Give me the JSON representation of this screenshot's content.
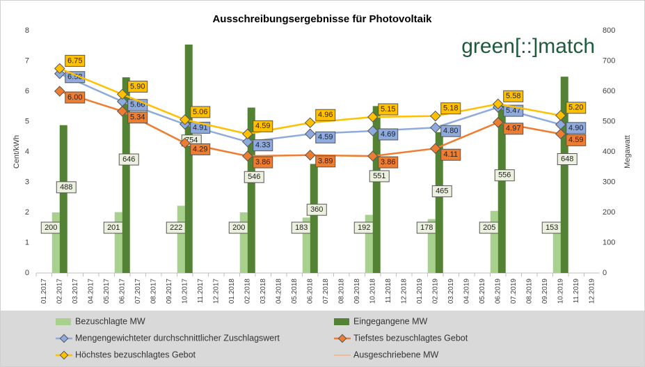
{
  "chart_data": {
    "type": "combo",
    "title": "Ausschreibungsergebnisse für Photovoltaik",
    "watermark": "green[::]match",
    "y_label": "Cent/kWh",
    "y2_label": "Megawatt",
    "categories": [
      "01.2017",
      "02.2017",
      "03.2017",
      "04.2017",
      "05.2017",
      "06.2017",
      "07.2017",
      "08.2017",
      "09.2017",
      "10.2017",
      "11.2017",
      "12.2017",
      "01.2018",
      "02.2018",
      "03.2018",
      "04.2018",
      "05.2018",
      "06.2018",
      "07.2018",
      "08.2018",
      "09.2018",
      "10.2018",
      "11.2018",
      "12.2018",
      "01.2019",
      "02.2019",
      "03.2019",
      "04.2019",
      "05.2019",
      "06.2019",
      "07.2019",
      "08.2019",
      "09.2019",
      "10.2019",
      "11.2019",
      "12.2019"
    ],
    "ylim": [
      0,
      8
    ],
    "yticks": [
      0,
      1,
      2,
      3,
      4,
      5,
      6,
      7,
      8
    ],
    "y2lim": [
      0,
      800
    ],
    "y2ticks": [
      0,
      100,
      200,
      300,
      400,
      500,
      600,
      700,
      800
    ],
    "span_gaps": true,
    "series": [
      {
        "name": "Bezuschlagte MW",
        "type": "bar",
        "axis": "y2",
        "color": "#a9d18e",
        "values": [
          null,
          200,
          null,
          null,
          null,
          201,
          null,
          null,
          null,
          222,
          null,
          null,
          null,
          200,
          null,
          null,
          null,
          183,
          null,
          null,
          null,
          192,
          null,
          null,
          null,
          178,
          null,
          null,
          null,
          205,
          null,
          null,
          null,
          153,
          null,
          null
        ]
      },
      {
        "name": "Eingegangene MW",
        "type": "bar",
        "axis": "y2",
        "color": "#548235",
        "values": [
          null,
          488,
          null,
          null,
          null,
          646,
          null,
          null,
          null,
          754,
          null,
          null,
          null,
          546,
          null,
          null,
          null,
          360,
          null,
          null,
          null,
          551,
          null,
          null,
          null,
          465,
          null,
          null,
          null,
          556,
          null,
          null,
          null,
          648,
          null,
          null
        ]
      },
      {
        "name": "Mengengewichteter durchschnittlicher Zuschlagswert",
        "type": "line",
        "color": "#8faadc",
        "values": [
          null,
          6.58,
          null,
          null,
          null,
          5.66,
          null,
          null,
          null,
          4.91,
          null,
          null,
          null,
          4.33,
          null,
          null,
          null,
          4.59,
          null,
          null,
          null,
          4.69,
          null,
          null,
          null,
          4.8,
          null,
          null,
          null,
          5.47,
          null,
          null,
          null,
          4.9,
          null,
          null
        ],
        "value_labels": [
          null,
          "6.58",
          null,
          null,
          null,
          "5.66",
          null,
          null,
          null,
          "4.91",
          null,
          null,
          null,
          "4.33",
          null,
          null,
          null,
          "4.59",
          null,
          null,
          null,
          "4.69",
          null,
          null,
          null,
          "4.80",
          null,
          null,
          null,
          "5.47",
          null,
          null,
          null,
          "4.90",
          null,
          null
        ]
      },
      {
        "name": "Tiefstes bezuschlagtes Gebot",
        "type": "line",
        "color": "#ed7d31",
        "values": [
          null,
          6.0,
          null,
          null,
          null,
          5.34,
          null,
          null,
          null,
          4.29,
          null,
          null,
          null,
          3.86,
          null,
          null,
          null,
          3.89,
          null,
          null,
          null,
          3.86,
          null,
          null,
          null,
          4.11,
          null,
          null,
          null,
          4.97,
          null,
          null,
          null,
          4.59,
          null,
          null
        ],
        "value_labels": [
          null,
          "6.00",
          null,
          null,
          null,
          "5.34",
          null,
          null,
          null,
          "4.29",
          null,
          null,
          null,
          "3.86",
          null,
          null,
          null,
          "3.89",
          null,
          null,
          null,
          "3.86",
          null,
          null,
          null,
          "4.11",
          null,
          null,
          null,
          "4.97",
          null,
          null,
          null,
          "4.59",
          null,
          null
        ]
      },
      {
        "name": "Höchstes bezuschlagtes Gebot",
        "type": "line",
        "color": "#ffc000",
        "values": [
          null,
          6.75,
          null,
          null,
          null,
          5.9,
          null,
          null,
          null,
          5.06,
          null,
          null,
          null,
          4.59,
          null,
          null,
          null,
          4.96,
          null,
          null,
          null,
          5.15,
          null,
          null,
          null,
          5.18,
          null,
          null,
          null,
          5.58,
          null,
          null,
          null,
          5.2,
          null,
          null
        ],
        "value_labels": [
          null,
          "6.75",
          null,
          null,
          null,
          "5.90",
          null,
          null,
          null,
          "5.06",
          null,
          null,
          null,
          "4.59",
          null,
          null,
          null,
          "4.96",
          null,
          null,
          null,
          "5.15",
          null,
          null,
          null,
          "5.18",
          null,
          null,
          null,
          "5.58",
          null,
          null,
          null,
          "5.20",
          null,
          null
        ]
      },
      {
        "name": "Ausgeschriebene MW",
        "type": "line",
        "axis": "y2",
        "color": "#f4b183",
        "values": [
          null,
          null,
          null,
          null,
          null,
          null,
          null,
          null,
          null,
          null,
          null,
          null,
          null,
          null,
          null,
          null,
          null,
          null,
          null,
          null,
          null,
          null,
          null,
          null,
          null,
          null,
          null,
          null,
          null,
          null,
          null,
          null,
          null,
          null,
          null,
          null
        ]
      }
    ]
  }
}
